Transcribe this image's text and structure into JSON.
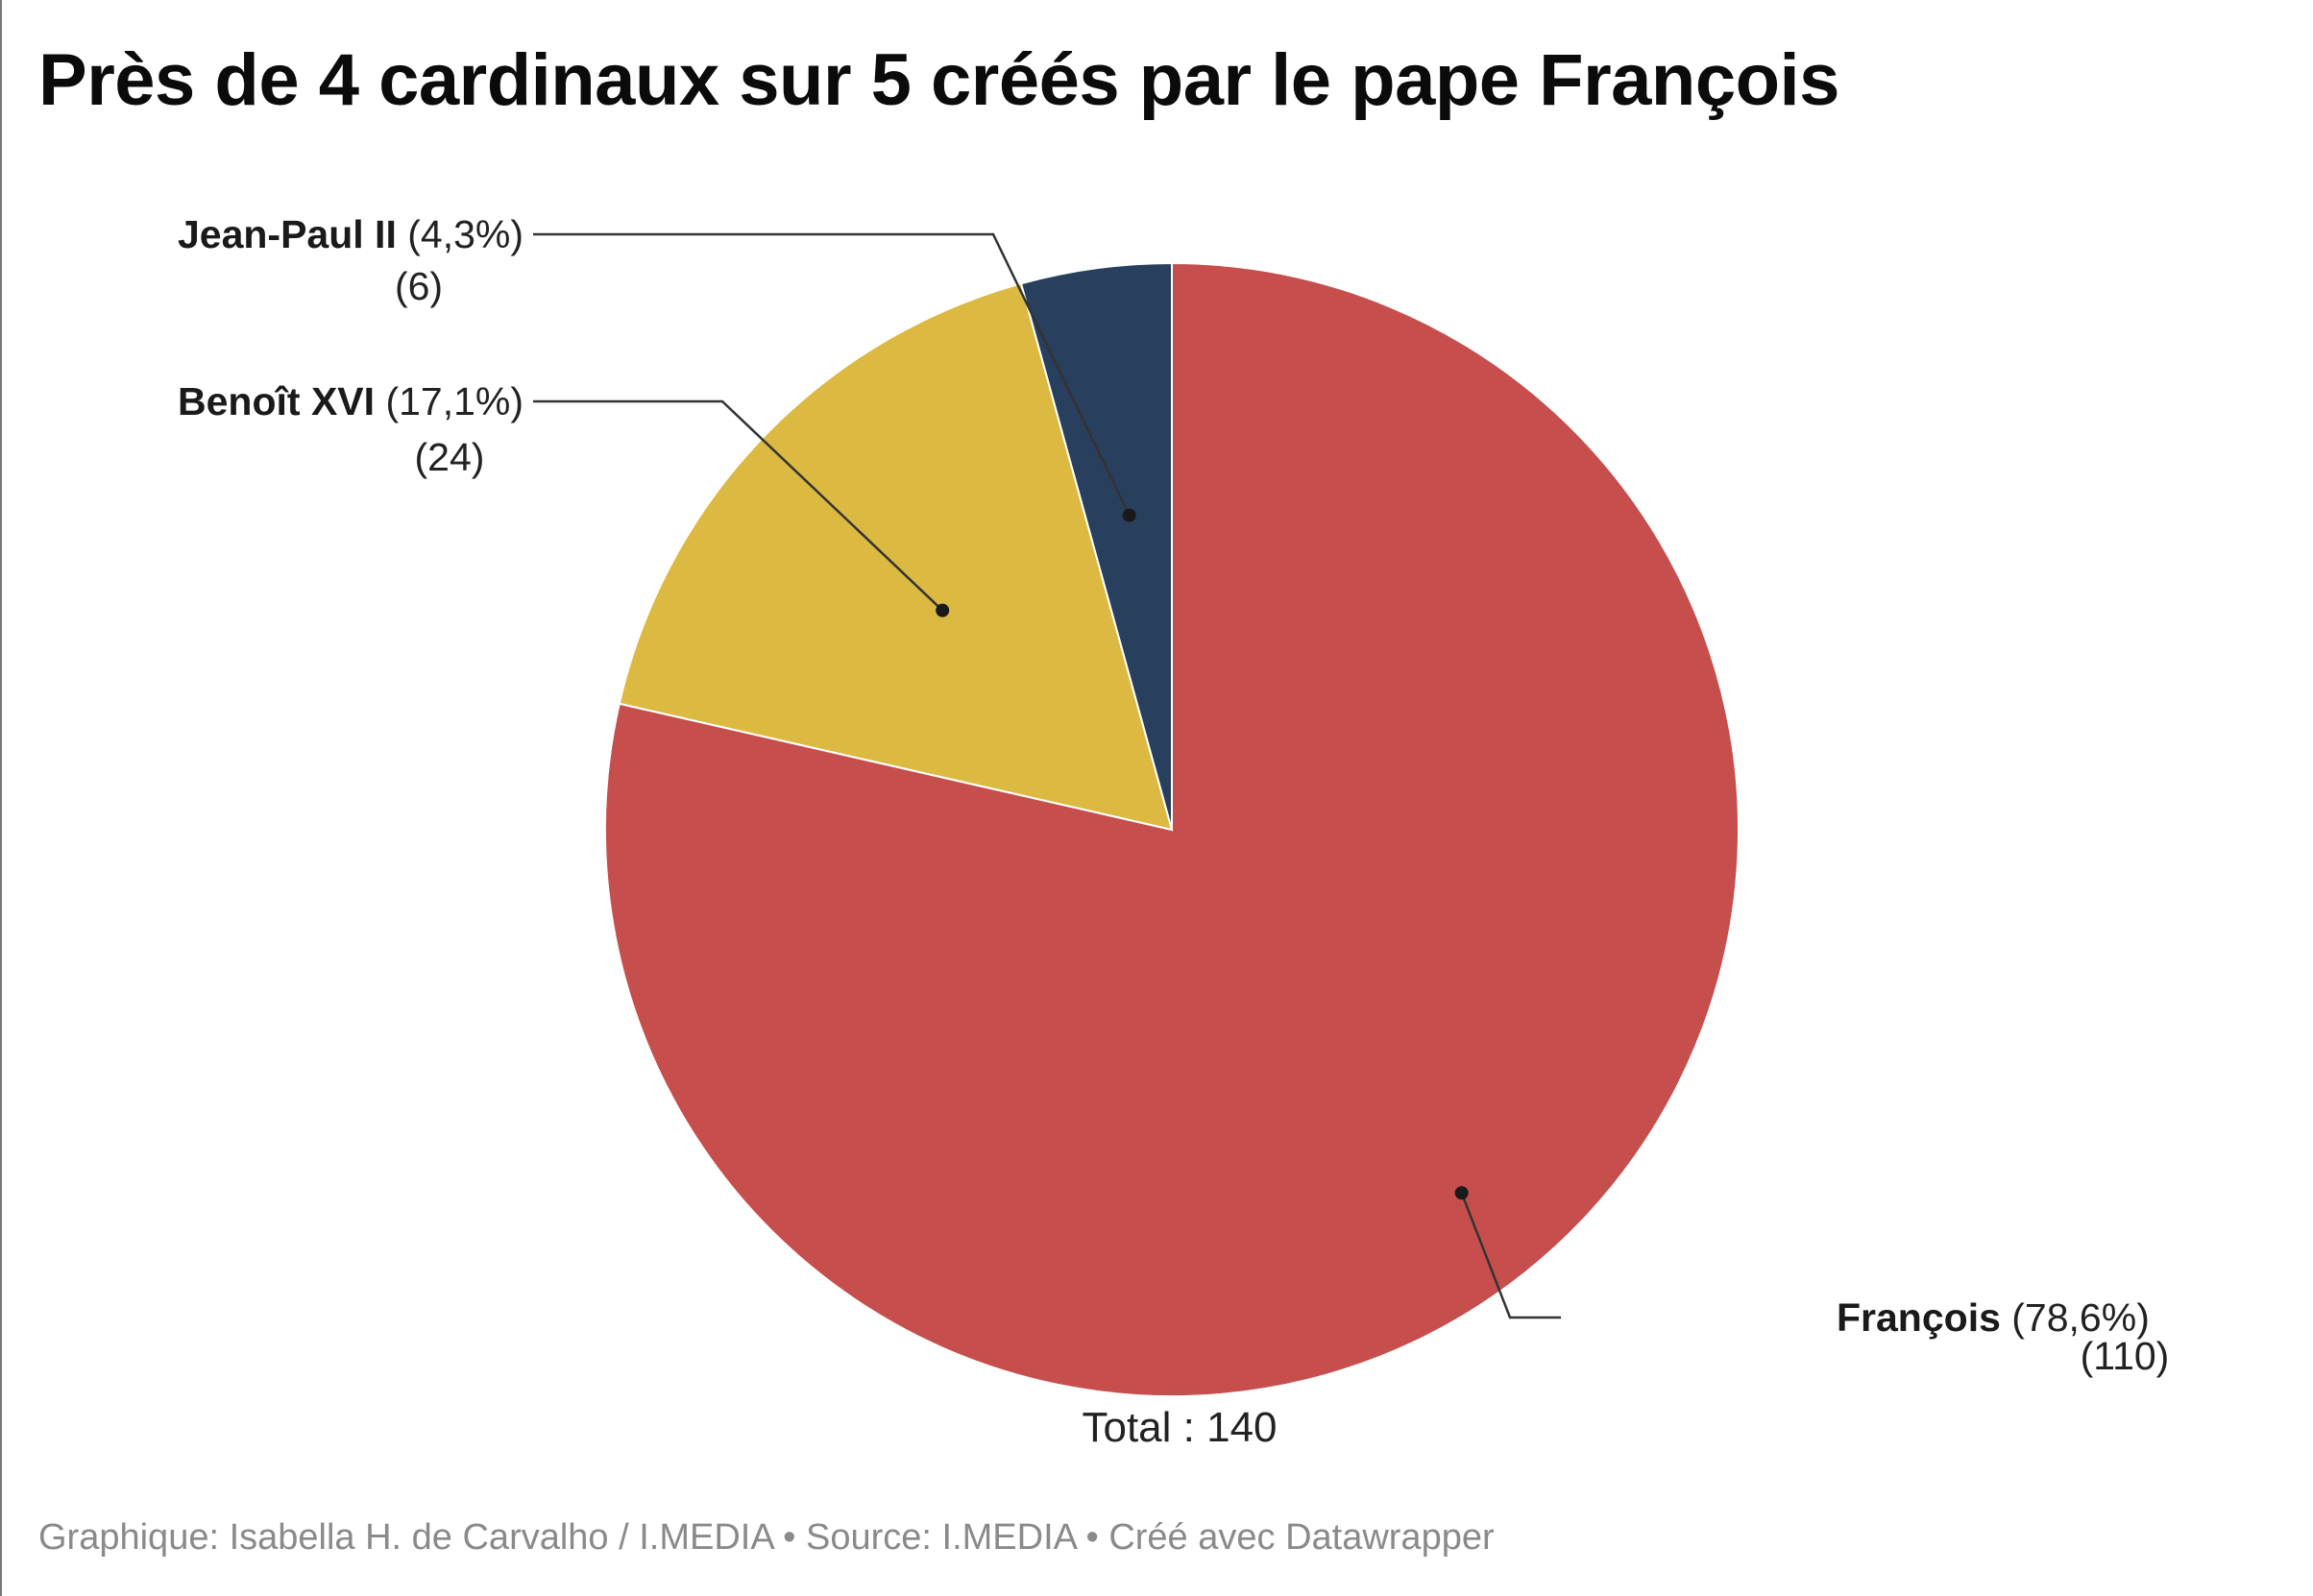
{
  "title": "Près de 4 cardinaux sur 5 créés par le pape François",
  "footer": "Graphique: Isabella H. de Carvalho / I.MEDIA • Source: I.MEDIA • Créé avec Datawrapper",
  "total_label": "Total : 140",
  "chart_data": {
    "type": "pie",
    "title": "Près de 4 cardinaux sur 5 créés par le pape François",
    "total": 140,
    "slices": [
      {
        "name": "François",
        "value": 110,
        "percent_label": "(78,6%)",
        "value_label": "(110)",
        "color": "#c64e4d"
      },
      {
        "name": "Benoît XVI",
        "value": 24,
        "percent_label": "(17,1%)",
        "value_label": "(24)",
        "color": "#dcb940"
      },
      {
        "name": "Jean-Paul II",
        "value": 6,
        "percent_label": "(4,3%)",
        "value_label": "(6)",
        "color": "#293f5e"
      }
    ]
  }
}
